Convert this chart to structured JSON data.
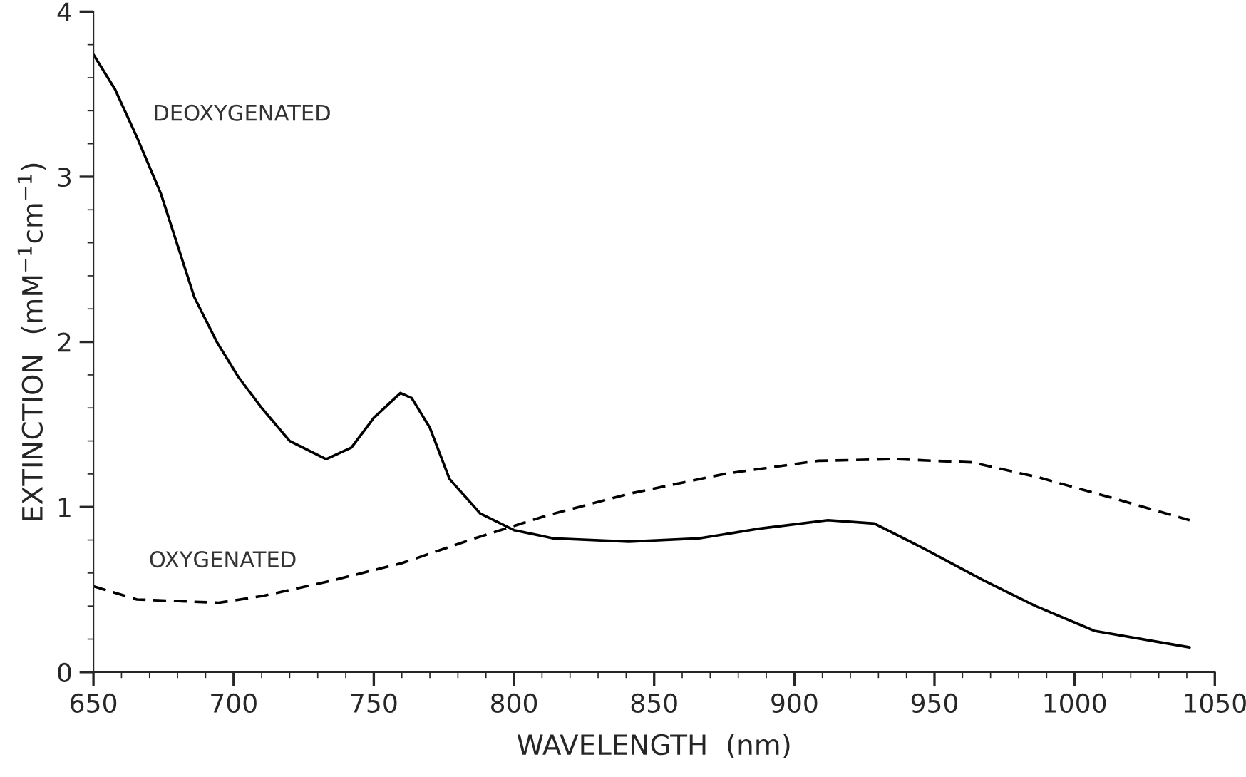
{
  "chart_data": {
    "type": "line",
    "xlabel": "WAVELENGTH  (nm)",
    "ylabel": "EXTINCTION  (mM$^{−1}$cm$^{−1}$)",
    "xlim": [
      650,
      1050
    ],
    "xticks": [
      650,
      700,
      750,
      800,
      850,
      900,
      950,
      1000,
      1050
    ],
    "ylim": [
      0,
      4
    ],
    "yticks": [
      0,
      1,
      2,
      3,
      4
    ],
    "grid": false,
    "legend": false,
    "series": [
      {
        "name": "DEOXYGENATED",
        "color": "#000000",
        "line_style": "solid",
        "x": [
          650,
          657.7,
          665.5,
          674,
          686,
          694,
          701.6,
          710,
          720,
          733,
          742,
          750,
          759.5,
          763.5,
          770,
          777,
          788,
          800,
          814,
          841,
          866,
          888,
          912,
          928.5,
          946,
          967,
          986,
          1007,
          1041
        ],
        "values": [
          3.74,
          3.53,
          3.24,
          2.9,
          2.27,
          2.0,
          1.79,
          1.6,
          1.4,
          1.29,
          1.36,
          1.54,
          1.69,
          1.66,
          1.48,
          1.17,
          0.96,
          0.86,
          0.81,
          0.79,
          0.81,
          0.87,
          0.92,
          0.9,
          0.75,
          0.56,
          0.4,
          0.25,
          0.15
        ]
      },
      {
        "name": "OXYGENATED",
        "color": "#000000",
        "line_style": "dashed",
        "x": [
          650,
          665.5,
          694.7,
          710,
          734,
          760,
          786,
          812,
          841,
          875,
          908.5,
          936,
          963.5,
          987,
          1016.5,
          1041
        ],
        "values": [
          0.52,
          0.44,
          0.42,
          0.46,
          0.55,
          0.66,
          0.81,
          0.95,
          1.08,
          1.2,
          1.28,
          1.29,
          1.27,
          1.18,
          1.04,
          0.92
        ]
      }
    ]
  }
}
